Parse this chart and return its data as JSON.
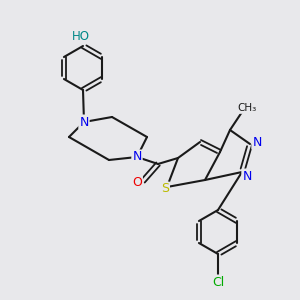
{
  "bg_color": "#e8e8eb",
  "bond_color": "#1a1a1a",
  "atom_colors": {
    "N": "#0000ee",
    "O": "#ee0000",
    "S": "#bbbb00",
    "Cl": "#00aa00",
    "HO": "#008888",
    "C": "#1a1a1a"
  },
  "figsize": [
    3.0,
    3.0
  ],
  "dpi": 100
}
